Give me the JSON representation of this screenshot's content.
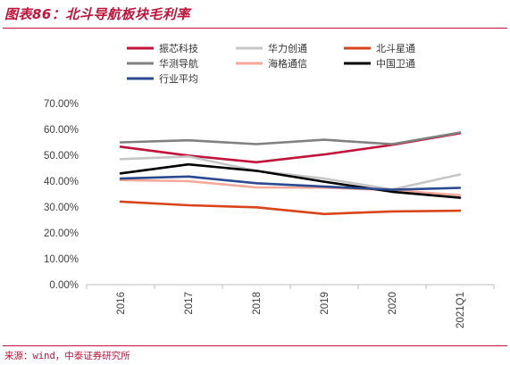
{
  "figure": {
    "title": "图表86：北斗导航板块毛利率",
    "source": "来源：wind，中泰证券研究所"
  },
  "colors": {
    "accent": "#c0133a"
  },
  "chart_data": {
    "type": "line",
    "title": "",
    "xlabel": "",
    "ylabel": "",
    "categories": [
      "2016",
      "2017",
      "2018",
      "2019",
      "2020",
      "2021Q1"
    ],
    "ylim": [
      0,
      70
    ],
    "yticks": [
      "0.00%",
      "10.00%",
      "20.00%",
      "30.00%",
      "40.00%",
      "50.00%",
      "60.00%",
      "70.00%"
    ],
    "grid": false,
    "legend_position": "top",
    "series": [
      {
        "name": "振芯科技",
        "color": "#c0143c",
        "values": [
          53.3,
          49.9,
          47.3,
          50.3,
          54.0,
          58.5
        ]
      },
      {
        "name": "华力创通",
        "color": "#c6c6c6",
        "values": [
          48.5,
          49.5,
          44.0,
          41.0,
          36.8,
          42.6
        ]
      },
      {
        "name": "北斗星通",
        "color": "#d9451a",
        "values": [
          32.1,
          30.7,
          29.9,
          27.3,
          28.3,
          28.6
        ]
      },
      {
        "name": "华测导航",
        "color": "#808080",
        "values": [
          55.0,
          55.8,
          54.3,
          56.0,
          54.3,
          58.8
        ]
      },
      {
        "name": "海格通信",
        "color": "#f4a99a",
        "values": [
          40.4,
          40.0,
          37.6,
          37.5,
          36.5,
          34.6
        ]
      },
      {
        "name": "中国卫通",
        "color": "#000000",
        "values": [
          43.0,
          46.5,
          44.0,
          39.8,
          35.9,
          33.6
        ]
      },
      {
        "name": "行业平均",
        "color": "#2c4a8f",
        "values": [
          41.0,
          41.8,
          39.2,
          37.9,
          36.7,
          37.4
        ]
      }
    ]
  }
}
